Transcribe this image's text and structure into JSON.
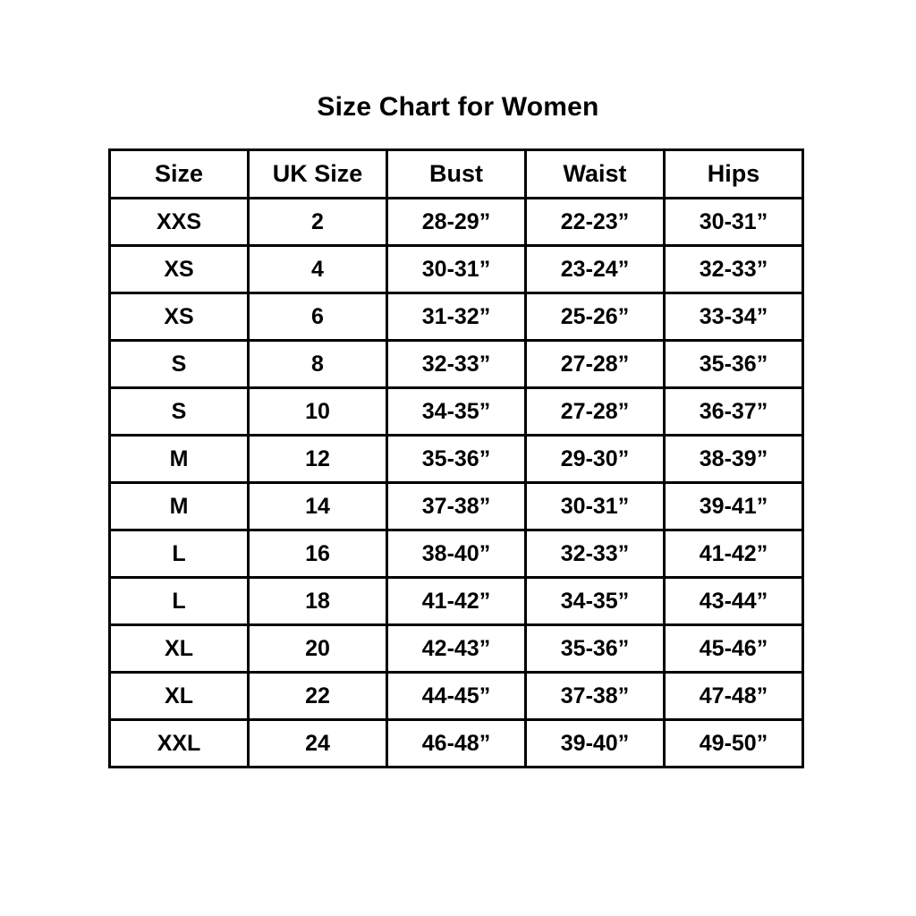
{
  "title": "Size Chart for Women",
  "table": {
    "headers": [
      "Size",
      "UK Size",
      "Bust",
      "Waist",
      "Hips"
    ],
    "rows": [
      [
        "XXS",
        "2",
        "28-29”",
        "22-23”",
        "30-31”"
      ],
      [
        "XS",
        "4",
        "30-31”",
        "23-24”",
        "32-33”"
      ],
      [
        "XS",
        "6",
        "31-32”",
        "25-26”",
        "33-34”"
      ],
      [
        "S",
        "8",
        "32-33”",
        "27-28”",
        "35-36”"
      ],
      [
        "S",
        "10",
        "34-35”",
        "27-28”",
        "36-37”"
      ],
      [
        "M",
        "12",
        "35-36”",
        "29-30”",
        "38-39”"
      ],
      [
        "M",
        "14",
        "37-38”",
        "30-31”",
        "39-41”"
      ],
      [
        "L",
        "16",
        "38-40”",
        "32-33”",
        "41-42”"
      ],
      [
        "L",
        "18",
        "41-42”",
        "34-35”",
        "43-44”"
      ],
      [
        "XL",
        "20",
        "42-43”",
        "35-36”",
        "45-46”"
      ],
      [
        "XL",
        "22",
        "44-45”",
        "37-38”",
        "47-48”"
      ],
      [
        "XXL",
        "24",
        "46-48”",
        "39-40”",
        "49-50”"
      ]
    ]
  },
  "chart_data": {
    "type": "table",
    "title": "Size Chart for Women",
    "columns": [
      "Size",
      "UK Size",
      "Bust",
      "Waist",
      "Hips"
    ],
    "rows": [
      [
        "XXS",
        "2",
        "28-29”",
        "22-23”",
        "30-31”"
      ],
      [
        "XS",
        "4",
        "30-31”",
        "23-24”",
        "32-33”"
      ],
      [
        "XS",
        "6",
        "31-32”",
        "25-26”",
        "33-34”"
      ],
      [
        "S",
        "8",
        "32-33”",
        "27-28”",
        "35-36”"
      ],
      [
        "S",
        "10",
        "34-35”",
        "27-28”",
        "36-37”"
      ],
      [
        "M",
        "12",
        "35-36”",
        "29-30”",
        "38-39”"
      ],
      [
        "M",
        "14",
        "37-38”",
        "30-31”",
        "39-41”"
      ],
      [
        "L",
        "16",
        "38-40”",
        "32-33”",
        "41-42”"
      ],
      [
        "L",
        "18",
        "41-42”",
        "34-35”",
        "43-44”"
      ],
      [
        "XL",
        "20",
        "42-43”",
        "35-36”",
        "45-46”"
      ],
      [
        "XL",
        "22",
        "44-45”",
        "37-38”",
        "47-48”"
      ],
      [
        "XXL",
        "24",
        "46-48”",
        "39-40”",
        "49-50”"
      ]
    ]
  },
  "colors": {
    "background": "#ffffff",
    "border": "#000000",
    "text": "#000000"
  }
}
